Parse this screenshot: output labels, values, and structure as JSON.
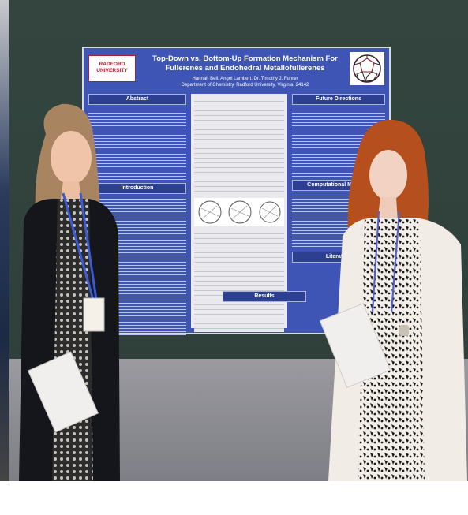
{
  "poster": {
    "logo_line1": "RADFORD",
    "logo_line2": "UNIVERSITY",
    "title": "Top-Down vs. Bottom-Up Formation Mechanism For Fullerenes and Endohedral Metallofullerenes",
    "authors": "Hannah Bell, Angel Lambert, Dr. Timothy J. Fuhrer",
    "department": "Department of Chemistry, Radford University, Virginia, 24142",
    "sections": {
      "abstract": "Abstract",
      "introduction": "Introduction",
      "future_directions": "Future Directions",
      "computational_methods": "Computational Methods",
      "results": "Results",
      "literature": "Literature"
    }
  },
  "colors": {
    "poster_blue": "#3f55b5",
    "section_header": "#2d3f90",
    "logo_red": "#b21d2a",
    "backdrop": "#34453f"
  }
}
